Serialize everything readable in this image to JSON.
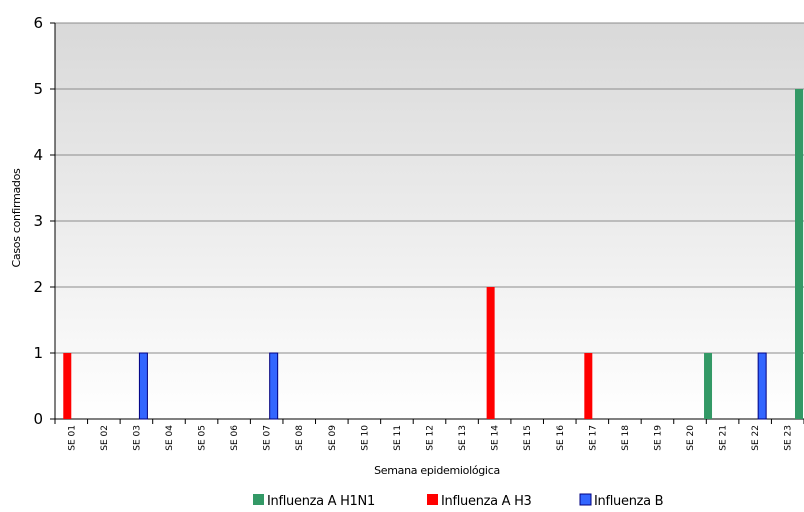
{
  "chart_data": {
    "type": "bar",
    "xlabel": "Semana epidemiológica",
    "ylabel": "Casos confirmados",
    "ylim": [
      0,
      6
    ],
    "yticks": [
      0,
      1,
      2,
      3,
      4,
      5,
      6
    ],
    "grid": true,
    "legend_position": "bottom",
    "background": "vertical gradient, gray at top to white at bottom",
    "categories": [
      "SE 01",
      "SE 02",
      "SE 03",
      "SE 04",
      "SE 05",
      "SE 06",
      "SE 07",
      "SE 08",
      "SE 09",
      "SE 10",
      "SE 11",
      "SE 12",
      "SE 13",
      "SE 14",
      "SE 15",
      "SE 16",
      "SE 17",
      "SE 18",
      "SE 19",
      "SE 20",
      "SE 21",
      "SE 22",
      "SE 23"
    ],
    "series": [
      {
        "name": "Influenza A H1N1",
        "color": "#339966",
        "values": [
          0,
          0,
          0,
          0,
          0,
          0,
          0,
          0,
          0,
          0,
          0,
          0,
          0,
          0,
          0,
          0,
          0,
          0,
          0,
          1,
          0,
          0,
          5
        ]
      },
      {
        "name": "Influenza A H3",
        "color": "#ff0000",
        "values": [
          1,
          0,
          0,
          0,
          0,
          0,
          0,
          0,
          0,
          0,
          0,
          0,
          0,
          2,
          0,
          0,
          1,
          0,
          0,
          0,
          0,
          0,
          0
        ]
      },
      {
        "name": "Influenza B",
        "color": "#3366ff",
        "values": [
          0,
          0,
          1,
          0,
          0,
          0,
          1,
          0,
          0,
          0,
          0,
          0,
          0,
          0,
          0,
          0,
          0,
          0,
          0,
          0,
          0,
          1,
          0
        ]
      }
    ]
  }
}
